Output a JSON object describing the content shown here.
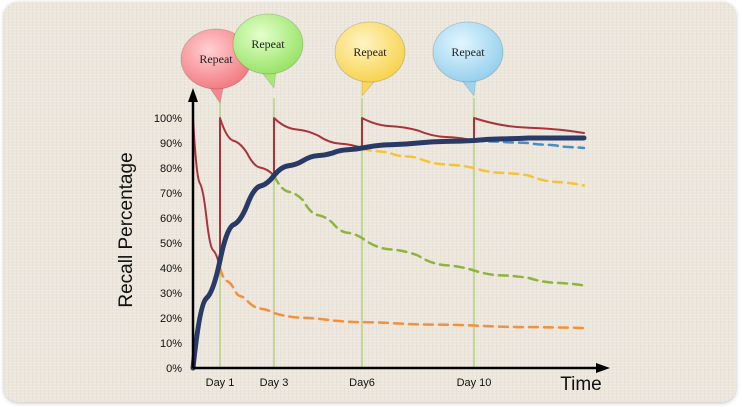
{
  "chart_data": {
    "type": "line",
    "xlabel": "Time",
    "ylabel": "Recall Percentage",
    "y_ticks": [
      "100%",
      "90%",
      "80%",
      "70%",
      "60%",
      "50%",
      "40%",
      "30%",
      "20%",
      "10%",
      "0%"
    ],
    "ylim": [
      0,
      100
    ],
    "xlim": [
      0,
      14
    ],
    "grid": false,
    "review_markers": [
      {
        "label": "Day 1",
        "x": 1,
        "bubble": "Repeat",
        "color": "#f4868c"
      },
      {
        "label": "Day 3",
        "x": 3,
        "bubble": "Repeat",
        "color": "#a8e878"
      },
      {
        "label": "Day6",
        "x": 6,
        "bubble": "Repeat",
        "color": "#f8d660"
      },
      {
        "label": "Day 10",
        "x": 10,
        "bubble": "Repeat",
        "color": "#9fd4ee"
      }
    ],
    "series": [
      {
        "role": "recall-with-reviews",
        "color": "#a8343a",
        "style": "solid",
        "points": [
          [
            0,
            100
          ],
          [
            0.5,
            60
          ],
          [
            1,
            40
          ],
          [
            1,
            100
          ],
          [
            2,
            86
          ],
          [
            3,
            77
          ],
          [
            3,
            100
          ],
          [
            4.5,
            93
          ],
          [
            6,
            88
          ],
          [
            6,
            100
          ],
          [
            8,
            95
          ],
          [
            10,
            91
          ],
          [
            10,
            100
          ],
          [
            14,
            94
          ]
        ]
      },
      {
        "role": "decay-after-day-1",
        "color": "#f4903c",
        "style": "dashed",
        "points": [
          [
            1,
            40
          ],
          [
            1.5,
            32
          ],
          [
            2,
            27
          ],
          [
            3,
            22
          ],
          [
            5,
            19
          ],
          [
            7,
            18
          ],
          [
            10,
            17
          ],
          [
            14,
            16
          ]
        ]
      },
      {
        "role": "decay-after-day-3",
        "color": "#8fb43c",
        "style": "dashed",
        "points": [
          [
            3,
            77
          ],
          [
            4,
            67
          ],
          [
            5,
            58
          ],
          [
            6,
            52
          ],
          [
            8,
            45
          ],
          [
            10,
            39
          ],
          [
            12,
            36
          ],
          [
            14,
            33
          ]
        ]
      },
      {
        "role": "decay-after-day-6",
        "color": "#f4c438",
        "style": "dashed",
        "points": [
          [
            6,
            88
          ],
          [
            7,
            86
          ],
          [
            8,
            84
          ],
          [
            10,
            80
          ],
          [
            12,
            77
          ],
          [
            14,
            73
          ]
        ]
      },
      {
        "role": "decay-after-day-10",
        "color": "#4a8cc4",
        "style": "dashed",
        "points": [
          [
            10,
            91
          ],
          [
            11,
            90.5
          ],
          [
            12,
            90
          ],
          [
            13,
            89
          ],
          [
            14,
            88
          ]
        ]
      },
      {
        "role": "retention-trend",
        "color": "#2a3a66",
        "style": "solid-thick",
        "points": [
          [
            0,
            0
          ],
          [
            1,
            43
          ],
          [
            2,
            65
          ],
          [
            3,
            77
          ],
          [
            4,
            83
          ],
          [
            5,
            86
          ],
          [
            6,
            88
          ],
          [
            8,
            90
          ],
          [
            10,
            91
          ],
          [
            12,
            92
          ],
          [
            14,
            92
          ]
        ]
      }
    ]
  }
}
